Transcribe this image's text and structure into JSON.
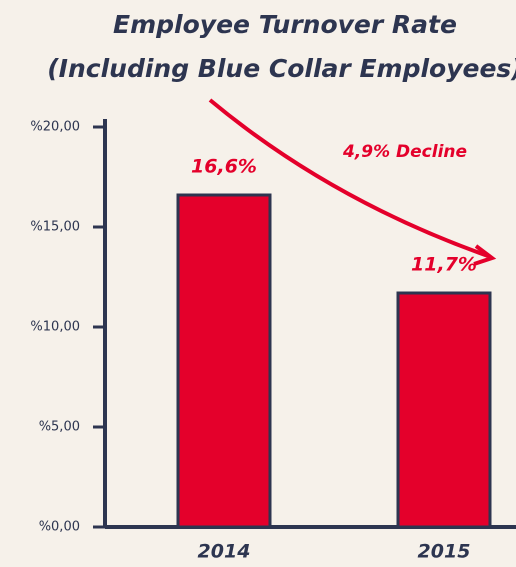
{
  "chart_data": {
    "type": "bar",
    "title": "Employee Turnover Rate",
    "subtitle": "(Including Blue Collar Employees)",
    "categories": [
      "2014",
      "2015"
    ],
    "values": [
      16.6,
      11.7
    ],
    "value_labels": [
      "16,6%",
      "11,7%"
    ],
    "color": "#e4002b",
    "annotation": "4,9% Decline",
    "ylim": [
      0,
      20
    ],
    "yticks": [
      {
        "value": 0,
        "label": "%0,00"
      },
      {
        "value": 5,
        "label": "%5,00"
      },
      {
        "value": 10,
        "label": "%10,00"
      },
      {
        "value": 15,
        "label": "%15,00"
      },
      {
        "value": 20,
        "label": "%20,00"
      }
    ],
    "grid": false
  }
}
